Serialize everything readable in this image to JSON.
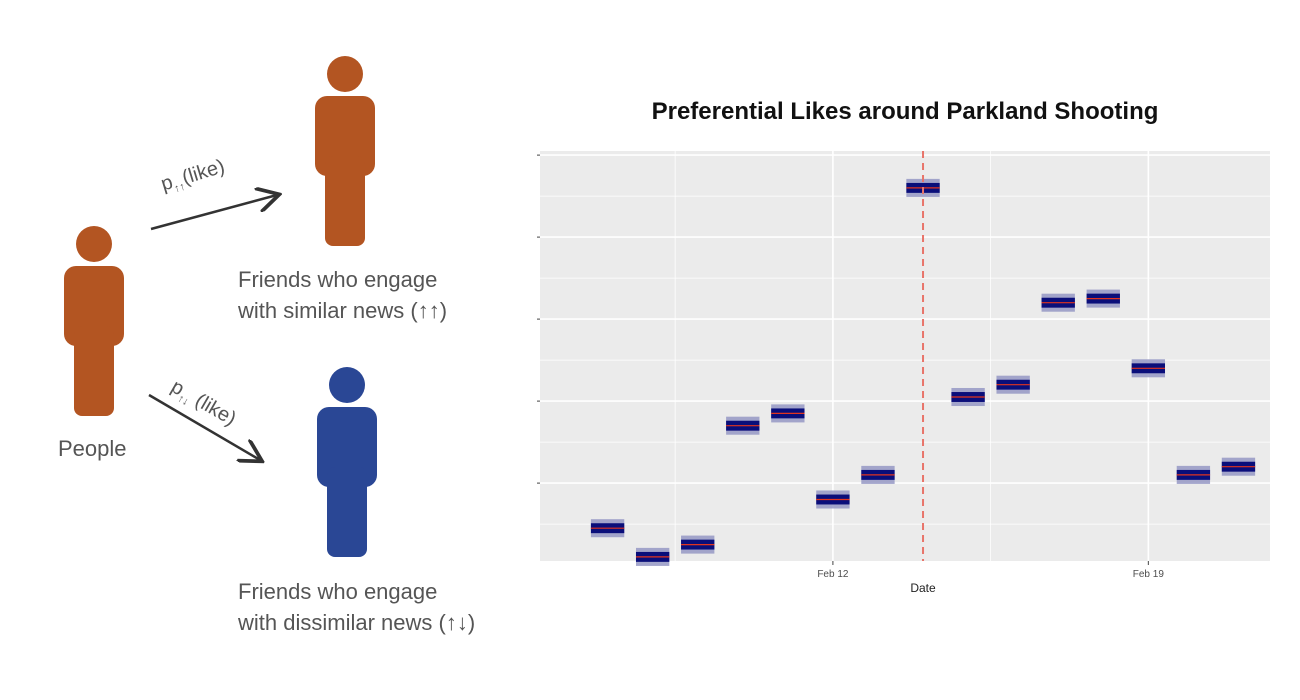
{
  "diagram": {
    "people_label": "People",
    "similar_friends": {
      "line1": "Friends who engage",
      "line2": "with similar news (↑↑)"
    },
    "dissimilar_friends": {
      "line1": "Friends who engage",
      "line2": "with dissimilar news (↑↓)"
    },
    "arrow_similar": {
      "prefix": "p",
      "subscript": "↑↑",
      "suffix": "(like)"
    },
    "arrow_dissimilar": {
      "prefix": "p",
      "subscript": "↑↓",
      "suffix": " (like)"
    },
    "colors": {
      "orange": "#B35522",
      "blue": "#2A4795",
      "arrow": "#333333"
    },
    "icons": [
      "person-icon",
      "arrow-icon"
    ]
  },
  "chart_data": {
    "type": "box",
    "title": "Preferential Likes around Parkland Shooting",
    "xlabel": "Date",
    "ylabel": "",
    "x_ticks": [
      {
        "value": 12,
        "label": "Feb 12"
      },
      {
        "value": 19,
        "label": "Feb 19"
      }
    ],
    "xlim": [
      5.5,
      21.7
    ],
    "ylim": [
      0.05,
      5.05
    ],
    "y_tick_labels_visible": false,
    "grid": true,
    "background": "#EBEBEB",
    "series": [
      {
        "x": [
          7,
          8,
          9,
          10,
          11,
          12,
          13,
          14,
          15,
          16,
          17,
          18,
          19,
          20,
          21
        ],
        "values": [
          0.45,
          0.1,
          0.25,
          1.7,
          1.85,
          0.8,
          1.1,
          4.6,
          2.05,
          2.2,
          3.2,
          3.25,
          2.4,
          1.1,
          1.2
        ],
        "low": [
          0.34,
          -0.01,
          0.14,
          1.59,
          1.74,
          0.69,
          0.99,
          4.49,
          1.94,
          2.09,
          3.09,
          3.14,
          2.29,
          0.99,
          1.09
        ],
        "high": [
          0.56,
          0.21,
          0.36,
          1.81,
          1.96,
          0.91,
          1.21,
          4.71,
          2.16,
          2.31,
          3.31,
          3.36,
          2.51,
          1.21,
          1.31
        ]
      }
    ],
    "event_line": {
      "x": 14,
      "style": "dashed",
      "color": "#E8746A"
    },
    "colors": {
      "box_fill": "#0A0E7A",
      "box_band": "#9A9CC6",
      "median": "#E0341F",
      "grid": "#FFFFFF"
    }
  }
}
